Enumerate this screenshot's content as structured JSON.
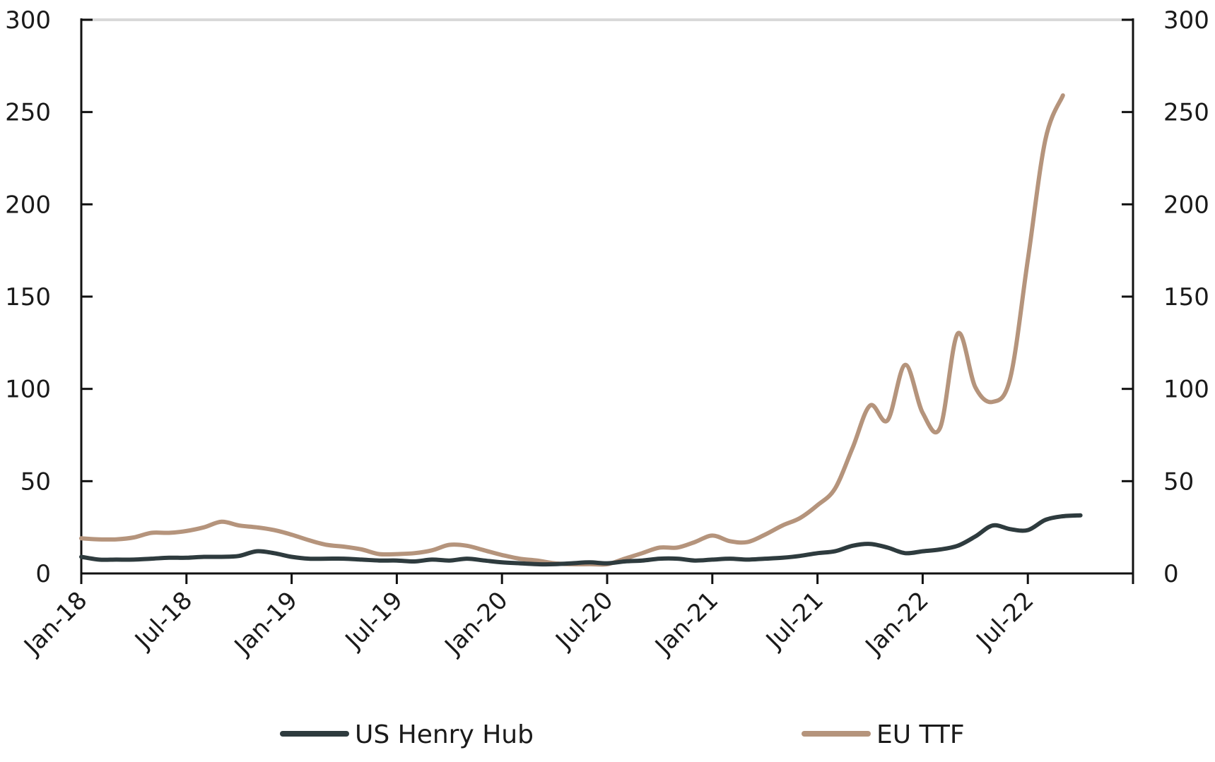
{
  "chart_data": {
    "type": "line",
    "title": "",
    "xlabel": "",
    "ylabel": "",
    "ylim": [
      0,
      300
    ],
    "yticks": [
      0,
      50,
      100,
      150,
      200,
      250,
      300
    ],
    "y2ticks": [
      0,
      50,
      100,
      150,
      200,
      250,
      300
    ],
    "xlim": [
      "2018-01",
      "2023-01"
    ],
    "xtick_labels": [
      "Jan-18",
      "Jul-18",
      "Jan-19",
      "Jul-19",
      "Jan-20",
      "Jul-20",
      "Jan-21",
      "Jul-21",
      "Jan-22",
      "Jul-22"
    ],
    "grid": "top border only",
    "legend_position": "bottom",
    "colors": {
      "US Henry Hub": "#2e3b3e",
      "EU TTF": "#b5947c"
    },
    "x": [
      "2018-01",
      "2018-02",
      "2018-03",
      "2018-04",
      "2018-05",
      "2018-06",
      "2018-07",
      "2018-08",
      "2018-09",
      "2018-10",
      "2018-11",
      "2018-12",
      "2019-01",
      "2019-02",
      "2019-03",
      "2019-04",
      "2019-05",
      "2019-06",
      "2019-07",
      "2019-08",
      "2019-09",
      "2019-10",
      "2019-11",
      "2019-12",
      "2020-01",
      "2020-02",
      "2020-03",
      "2020-04",
      "2020-05",
      "2020-06",
      "2020-07",
      "2020-08",
      "2020-09",
      "2020-10",
      "2020-11",
      "2020-12",
      "2021-01",
      "2021-02",
      "2021-03",
      "2021-04",
      "2021-05",
      "2021-06",
      "2021-07",
      "2021-08",
      "2021-09",
      "2021-10",
      "2021-11",
      "2021-12",
      "2022-01",
      "2022-02",
      "2022-03",
      "2022-04",
      "2022-05",
      "2022-06",
      "2022-07",
      "2022-08",
      "2022-09",
      "2022-10"
    ],
    "series": [
      {
        "name": "US Henry Hub",
        "values": [
          9,
          7.5,
          7.5,
          7.5,
          8,
          8.5,
          8.5,
          9,
          9,
          9.5,
          12,
          11,
          9,
          8,
          8,
          8,
          7.5,
          7,
          7,
          6.5,
          7.5,
          7,
          8,
          7,
          6,
          5.5,
          5,
          5,
          5.5,
          6,
          5.5,
          6.5,
          7,
          8,
          8,
          7,
          7.5,
          8,
          7.5,
          8,
          8.5,
          9.5,
          11,
          12,
          15,
          16,
          14,
          11,
          12,
          13,
          15,
          20,
          26,
          24,
          23.5,
          29,
          31,
          31.5
        ]
      },
      {
        "name": "EU TTF",
        "values": [
          19,
          18.5,
          18.5,
          19.5,
          22,
          22,
          23,
          25,
          28,
          26,
          25,
          23.5,
          21,
          18,
          15.5,
          14.5,
          13,
          10.5,
          10.5,
          11,
          12.5,
          15.5,
          15,
          12.5,
          10,
          8,
          7,
          5.5,
          5,
          5,
          5,
          8,
          11,
          14,
          14,
          17,
          20.5,
          17.5,
          17,
          21,
          26,
          30,
          37,
          46,
          68,
          91,
          83,
          113,
          87,
          79,
          130,
          101,
          93,
          106,
          170,
          235,
          259,
          null
        ]
      }
    ]
  }
}
